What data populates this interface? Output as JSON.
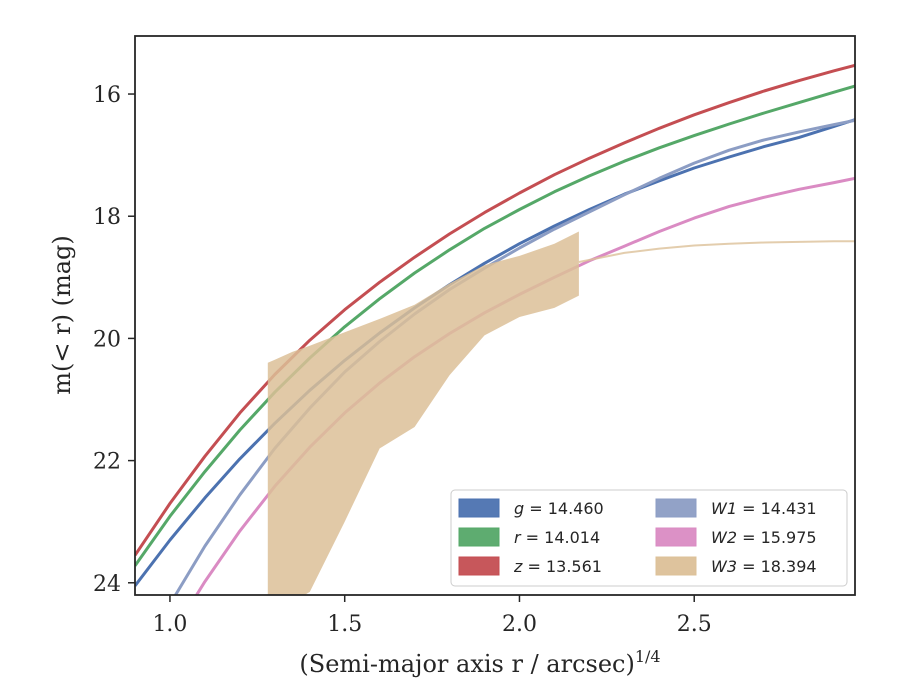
{
  "chart_data": {
    "type": "line",
    "xlabel": "(Semi-major axis r / arcsec)",
    "xlabel_sup": "1/4",
    "ylabel": "m(< r) (mag)",
    "xlim": [
      0.9,
      2.96
    ],
    "ylim": [
      24.2,
      15.05
    ],
    "y_inverted": true,
    "grid": false,
    "legend_placement": "lower-right",
    "x_ticks": [
      {
        "value": 1.0,
        "label": "1.0"
      },
      {
        "value": 1.5,
        "label": "1.5"
      },
      {
        "value": 2.0,
        "label": "2.0"
      },
      {
        "value": 2.5,
        "label": "2.5"
      }
    ],
    "y_ticks": [
      {
        "value": 16,
        "label": "16"
      },
      {
        "value": 18,
        "label": "18"
      },
      {
        "value": 20,
        "label": "20"
      },
      {
        "value": 22,
        "label": "22"
      },
      {
        "value": 24,
        "label": "24"
      }
    ],
    "series": [
      {
        "name": "g = 14.460",
        "band": "g",
        "value": "14.460",
        "color": "#4c72b0",
        "x": [
          0.9,
          1.0,
          1.1,
          1.2,
          1.3,
          1.4,
          1.5,
          1.6,
          1.7,
          1.8,
          1.9,
          2.0,
          2.1,
          2.2,
          2.3,
          2.4,
          2.5,
          2.6,
          2.7,
          2.8,
          2.9,
          2.96
        ],
        "y": [
          24.05,
          23.3,
          22.61,
          21.97,
          21.39,
          20.85,
          20.36,
          19.91,
          19.5,
          19.12,
          18.77,
          18.45,
          18.16,
          17.89,
          17.64,
          17.42,
          17.21,
          17.03,
          16.86,
          16.71,
          16.53,
          16.42
        ],
        "x_extra": [],
        "y_extra": []
      },
      {
        "name": "r = 14.014",
        "band": "r",
        "value": "14.014",
        "color": "#55a868",
        "x": [
          0.9,
          1.0,
          1.1,
          1.2,
          1.3,
          1.4,
          1.5,
          1.6,
          1.7,
          1.8,
          1.9,
          2.0,
          2.1,
          2.2,
          2.3,
          2.4,
          2.5,
          2.6,
          2.7,
          2.8,
          2.9,
          2.96
        ],
        "y": [
          23.72,
          22.91,
          22.18,
          21.5,
          20.88,
          20.32,
          19.81,
          19.35,
          18.93,
          18.55,
          18.2,
          17.89,
          17.6,
          17.34,
          17.1,
          16.88,
          16.68,
          16.49,
          16.31,
          16.14,
          15.97,
          15.87
        ],
        "x_extra": [],
        "y_extra": []
      },
      {
        "name": "z = 13.561",
        "band": "z",
        "value": "13.561",
        "color": "#c44e52",
        "x": [
          0.9,
          1.0,
          1.1,
          1.2,
          1.3,
          1.4,
          1.5,
          1.6,
          1.7,
          1.8,
          1.9,
          2.0,
          2.1,
          2.2,
          2.3,
          2.4,
          2.5,
          2.6,
          2.7,
          2.8,
          2.9,
          2.96
        ],
        "y": [
          23.55,
          22.7,
          21.93,
          21.22,
          20.59,
          20.03,
          19.53,
          19.08,
          18.67,
          18.29,
          17.94,
          17.62,
          17.32,
          17.05,
          16.8,
          16.56,
          16.34,
          16.14,
          15.95,
          15.78,
          15.62,
          15.53
        ],
        "x_extra": [],
        "y_extra": []
      },
      {
        "name": "W1 = 14.431",
        "band": "W1",
        "value": "14.431",
        "color": "#8c9dc4",
        "x": [
          0.9,
          1.0,
          1.1,
          1.2,
          1.3,
          1.4,
          1.5,
          1.6,
          1.7,
          1.8,
          1.9,
          2.0,
          2.1,
          2.2,
          2.3,
          2.4,
          2.5,
          2.6,
          2.7,
          2.8,
          2.9,
          2.96
        ],
        "y": [
          25.4,
          24.35,
          23.4,
          22.56,
          21.8,
          21.14,
          20.55,
          20.05,
          19.6,
          19.2,
          18.85,
          18.52,
          18.21,
          17.93,
          17.65,
          17.38,
          17.13,
          16.92,
          16.75,
          16.62,
          16.5,
          16.43
        ],
        "x_extra": [],
        "y_extra": []
      },
      {
        "name": "W2 = 15.975",
        "band": "W2",
        "value": "15.975",
        "color": "#da8bc3",
        "x": [
          0.9,
          1.0,
          1.1,
          1.2,
          1.3,
          1.4,
          1.5,
          1.6,
          1.7,
          1.8,
          1.9,
          2.0,
          2.1,
          2.2,
          2.3,
          2.4,
          2.5,
          2.6,
          2.7,
          2.8,
          2.9,
          2.96
        ],
        "y": [
          25.9,
          24.9,
          23.98,
          23.15,
          22.42,
          21.78,
          21.22,
          20.73,
          20.3,
          19.92,
          19.58,
          19.28,
          19.0,
          18.73,
          18.49,
          18.25,
          18.03,
          17.84,
          17.69,
          17.56,
          17.45,
          17.38
        ],
        "x_extra": [],
        "y_extra": []
      },
      {
        "name": "W3 = 18.394",
        "band": "W3",
        "value": "18.394",
        "color": "#dcc098",
        "x": [
          1.28,
          1.3,
          1.35,
          1.4,
          1.5,
          1.6,
          1.7,
          1.8,
          1.9,
          2.0,
          2.1,
          2.17
        ],
        "y_upper": [
          20.4,
          20.35,
          20.22,
          20.12,
          19.9,
          19.68,
          19.45,
          19.1,
          18.8,
          18.65,
          18.45,
          18.25
        ],
        "y_lower": [
          24.5,
          24.45,
          24.32,
          24.15,
          23.0,
          21.8,
          21.45,
          20.6,
          19.95,
          19.65,
          19.5,
          19.3
        ],
        "x_extra": [
          2.17,
          2.3,
          2.4,
          2.5,
          2.6,
          2.7,
          2.8,
          2.9,
          2.96
        ],
        "y_extra": [
          18.75,
          18.6,
          18.53,
          18.48,
          18.45,
          18.43,
          18.42,
          18.41,
          18.41
        ]
      }
    ]
  }
}
